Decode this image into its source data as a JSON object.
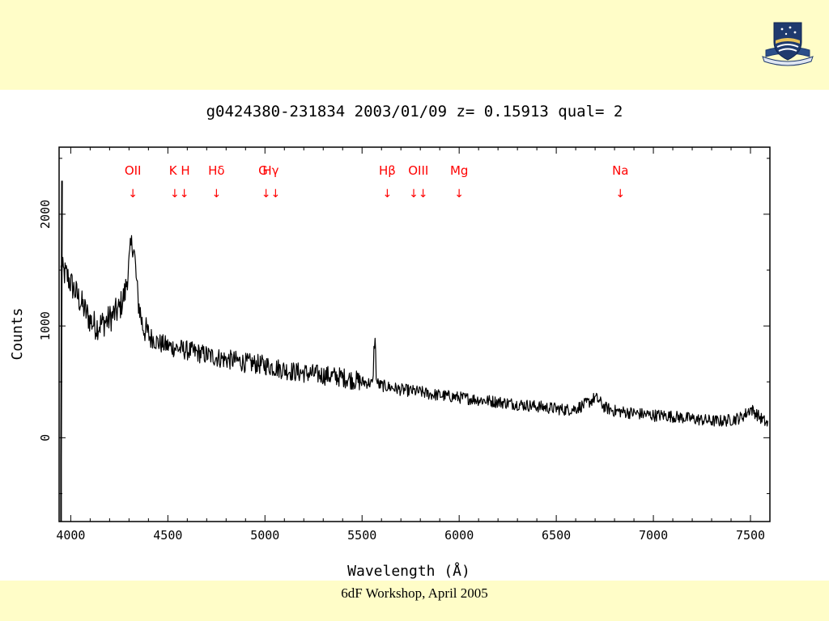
{
  "footer": {
    "text": "6dF Workshop, April 2005"
  },
  "colors": {
    "slide_background": "#fffdc8",
    "plot_background": "#ffffff",
    "spectrum": "#000000",
    "line_markers": "#ff0000",
    "logo_navy": "#1f3a6e",
    "logo_gold": "#e8c35a"
  },
  "logo": {
    "icon": "university-crest-icon"
  },
  "chart_data": {
    "type": "line",
    "title": "g0424380-231834 2003/01/09 z= 0.15913 qual= 2",
    "xlabel": "Wavelength (Å)",
    "ylabel": "Counts",
    "xlim": [
      3940,
      7600
    ],
    "ylim": [
      -750,
      2600
    ],
    "xticks": [
      4000,
      4500,
      5000,
      5500,
      6000,
      6500,
      7000,
      7500
    ],
    "yticks": [
      0,
      1000,
      2000
    ],
    "grid": false,
    "spectral_lines": [
      {
        "label": "OII",
        "arrows": "↓",
        "x": 4320
      },
      {
        "label": "K H",
        "arrows": "↓↓",
        "x": 4560
      },
      {
        "label": "Hδ",
        "arrows": "↓",
        "x": 4750
      },
      {
        "label": "G",
        "arrows": "",
        "x": 4990
      },
      {
        "label": "Hγ",
        "arrows": "↓↓",
        "x": 5030
      },
      {
        "label": "Hβ",
        "arrows": "↓",
        "x": 5630
      },
      {
        "label": "OIII",
        "arrows": "↓↓",
        "x": 5790
      },
      {
        "label": "Mg",
        "arrows": "↓",
        "x": 6000
      },
      {
        "label": "Na",
        "arrows": "↓",
        "x": 6830
      }
    ],
    "series": [
      {
        "x": [
          3950,
          3980,
          4010,
          4040,
          4070,
          4100,
          4130,
          4160,
          4190,
          4220,
          4250,
          4280,
          4300,
          4310,
          4320,
          4330,
          4345,
          4370,
          4400,
          4450,
          4500,
          4550,
          4600,
          4650,
          4700,
          4750,
          4800,
          4850,
          4900,
          4950,
          5000,
          5050,
          5100,
          5150,
          5200,
          5250,
          5300,
          5350,
          5400,
          5450,
          5500,
          5540,
          5555,
          5565,
          5575,
          5590,
          5620,
          5650,
          5700,
          5750,
          5800,
          5850,
          5900,
          5950,
          6000,
          6050,
          6100,
          6150,
          6200,
          6250,
          6300,
          6350,
          6400,
          6450,
          6500,
          6550,
          6600,
          6650,
          6680,
          6700,
          6720,
          6750,
          6800,
          6850,
          6900,
          6950,
          7000,
          7050,
          7100,
          7150,
          7200,
          7250,
          7300,
          7350,
          7400,
          7450,
          7480,
          7500,
          7520,
          7550,
          7590
        ],
        "y": [
          1500,
          1450,
          1350,
          1250,
          1150,
          1050,
          1000,
          1020,
          1050,
          1100,
          1150,
          1300,
          1550,
          1700,
          1750,
          1600,
          1250,
          1000,
          920,
          850,
          820,
          800,
          780,
          760,
          740,
          720,
          700,
          690,
          670,
          660,
          650,
          630,
          610,
          590,
          580,
          570,
          560,
          550,
          540,
          520,
          500,
          490,
          480,
          950,
          500,
          470,
          460,
          450,
          430,
          420,
          410,
          390,
          380,
          370,
          360,
          350,
          340,
          330,
          320,
          310,
          300,
          290,
          280,
          270,
          260,
          250,
          260,
          300,
          330,
          360,
          330,
          270,
          240,
          230,
          220,
          210,
          200,
          200,
          190,
          180,
          170,
          160,
          150,
          150,
          160,
          180,
          220,
          260,
          230,
          180,
          120
        ]
      }
    ]
  }
}
